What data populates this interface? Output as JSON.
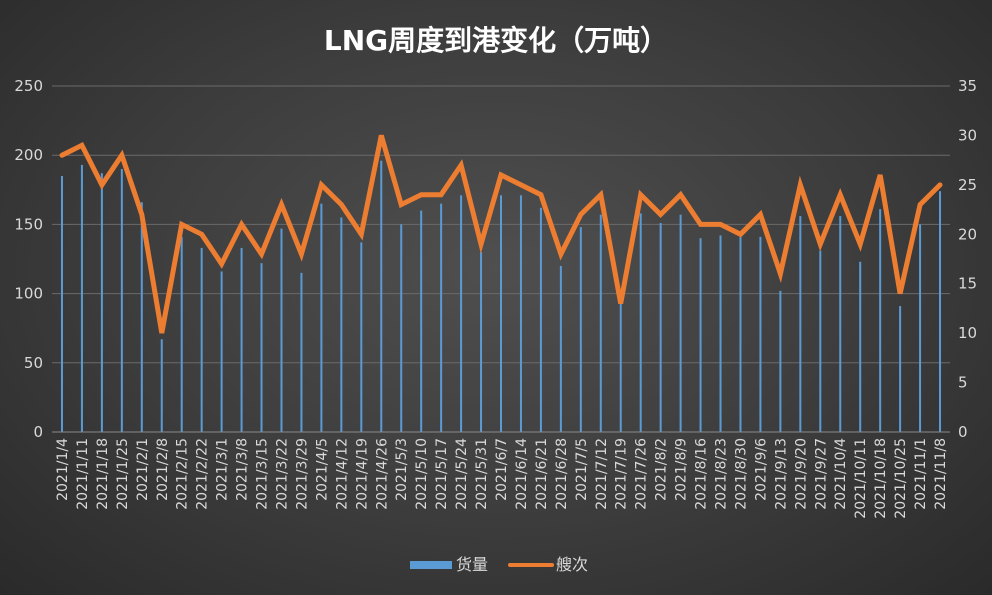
{
  "chart_data": {
    "type": "bar+line",
    "title": "LNG周度到港变化（万吨）",
    "categories": [
      "2021/1/4",
      "2021/1/11",
      "2021/1/18",
      "2021/1/25",
      "2021/2/1",
      "2021/2/8",
      "2021/2/15",
      "2021/2/22",
      "2021/3/1",
      "2021/3/8",
      "2021/3/15",
      "2021/3/22",
      "2021/3/29",
      "2021/4/5",
      "2021/4/12",
      "2021/4/19",
      "2021/4/26",
      "2021/5/3",
      "2021/5/10",
      "2021/5/17",
      "2021/5/24",
      "2021/5/31",
      "2021/6/7",
      "2021/6/14",
      "2021/6/21",
      "2021/6/28",
      "2021/7/5",
      "2021/7/12",
      "2021/7/19",
      "2021/7/26",
      "2021/8/2",
      "2021/8/9",
      "2021/8/16",
      "2021/8/23",
      "2021/8/30",
      "2021/9/6",
      "2021/9/13",
      "2021/9/20",
      "2021/9/27",
      "2021/10/4",
      "2021/10/11",
      "2021/10/18",
      "2021/10/25",
      "2021/11/1",
      "2021/11/8"
    ],
    "series": [
      {
        "name": "货量",
        "type": "bar",
        "axis": "left",
        "color": "#5b9bd5",
        "values": [
          185,
          193,
          187,
          190,
          166,
          67,
          141,
          133,
          116,
          133,
          122,
          147,
          115,
          165,
          155,
          137,
          196,
          150,
          160,
          165,
          171,
          130,
          171,
          171,
          162,
          120,
          148,
          157,
          95,
          158,
          151,
          157,
          140,
          142,
          141,
          141,
          102,
          156,
          131,
          156,
          123,
          161,
          91,
          150,
          174
        ]
      },
      {
        "name": "艘次",
        "type": "line",
        "axis": "right",
        "color": "#ed7d31",
        "values": [
          28,
          29,
          25,
          28,
          22,
          10,
          21,
          20,
          17,
          21,
          18,
          23,
          18,
          25,
          23,
          20,
          30,
          23,
          24,
          24,
          27,
          19,
          26,
          25,
          24,
          18,
          22,
          24,
          13,
          24,
          22,
          24,
          21,
          21,
          20,
          22,
          16,
          25,
          19,
          24,
          19,
          26,
          14,
          23,
          25
        ]
      }
    ],
    "y_left": {
      "range": [
        0,
        250
      ],
      "ticks": [
        "0",
        "50",
        "100",
        "150",
        "200",
        "250"
      ]
    },
    "y_right": {
      "range": [
        0,
        35
      ],
      "ticks": [
        "0",
        "5",
        "10",
        "15",
        "20",
        "25",
        "30",
        "35"
      ]
    },
    "grid": true,
    "legend": "bottom-center"
  }
}
